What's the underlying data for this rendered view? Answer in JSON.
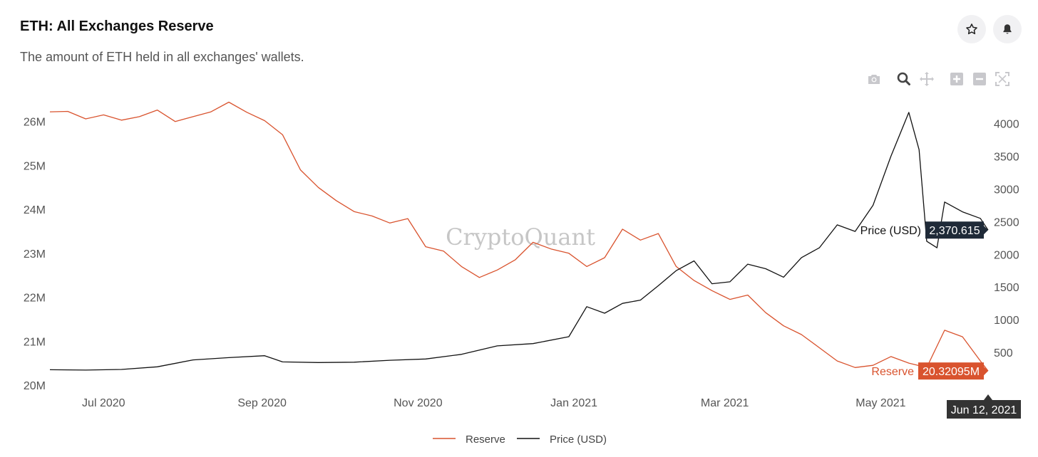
{
  "header": {
    "title": "ETH: All Exchanges Reserve",
    "subtitle": "The amount of ETH held in all exchanges' wallets."
  },
  "actions": [
    {
      "name": "star-icon",
      "label": "favorite"
    },
    {
      "name": "bell-icon",
      "label": "alert"
    }
  ],
  "modebar": [
    "camera-icon",
    "zoom-icon",
    "pan-icon",
    "zoom-in-icon",
    "zoom-out-icon",
    "autoscale-icon"
  ],
  "watermark": "CryptoQuant",
  "colors": {
    "reserve": "#d9532e",
    "price": "#111111",
    "tooltip_price_bg": "#1f2a38",
    "tooltip_date_bg": "#333333",
    "grid": "none"
  },
  "chart_data": {
    "type": "line",
    "title": "ETH: All Exchanges Reserve",
    "x_axis": {
      "type": "date",
      "ticks": [
        "Jul 2020",
        "Sep 2020",
        "Nov 2020",
        "Jan 2021",
        "Mar 2021",
        "May 2021"
      ],
      "range": [
        "2020-06-10",
        "2021-06-12"
      ]
    },
    "y_left": {
      "ticks": [
        "20M",
        "21M",
        "22M",
        "23M",
        "24M",
        "25M",
        "26M"
      ],
      "range": [
        20000000,
        26400000
      ]
    },
    "y_right": {
      "ticks": [
        "500",
        "1000",
        "1500",
        "2000",
        "2500",
        "3000",
        "3500",
        "4000"
      ],
      "range": [
        0,
        4300
      ]
    },
    "legend_position": "bottom-center",
    "series": [
      {
        "name": "Reserve",
        "axis": "left",
        "points": [
          [
            "2020-06-10",
            26220000
          ],
          [
            "2020-06-17",
            26230000
          ],
          [
            "2020-06-24",
            26060000
          ],
          [
            "2020-07-01",
            26150000
          ],
          [
            "2020-07-08",
            26030000
          ],
          [
            "2020-07-15",
            26110000
          ],
          [
            "2020-07-22",
            26260000
          ],
          [
            "2020-07-29",
            26000000
          ],
          [
            "2020-08-05",
            26110000
          ],
          [
            "2020-08-12",
            26220000
          ],
          [
            "2020-08-19",
            26440000
          ],
          [
            "2020-08-26",
            26210000
          ],
          [
            "2020-09-02",
            26020000
          ],
          [
            "2020-09-09",
            25700000
          ],
          [
            "2020-09-16",
            24900000
          ],
          [
            "2020-09-23",
            24500000
          ],
          [
            "2020-09-30",
            24200000
          ],
          [
            "2020-10-07",
            23950000
          ],
          [
            "2020-10-14",
            23850000
          ],
          [
            "2020-10-21",
            23690000
          ],
          [
            "2020-10-28",
            23790000
          ],
          [
            "2020-11-04",
            23150000
          ],
          [
            "2020-11-11",
            23050000
          ],
          [
            "2020-11-18",
            22700000
          ],
          [
            "2020-11-25",
            22450000
          ],
          [
            "2020-12-02",
            22620000
          ],
          [
            "2020-12-09",
            22850000
          ],
          [
            "2020-12-16",
            23250000
          ],
          [
            "2020-12-23",
            23100000
          ],
          [
            "2020-12-30",
            23000000
          ],
          [
            "2021-01-06",
            22700000
          ],
          [
            "2021-01-13",
            22900000
          ],
          [
            "2021-01-20",
            23550000
          ],
          [
            "2021-01-27",
            23300000
          ],
          [
            "2021-02-03",
            23450000
          ],
          [
            "2021-02-10",
            22700000
          ],
          [
            "2021-02-17",
            22380000
          ],
          [
            "2021-02-24",
            22150000
          ],
          [
            "2021-03-03",
            21950000
          ],
          [
            "2021-03-10",
            22050000
          ],
          [
            "2021-03-17",
            21650000
          ],
          [
            "2021-03-24",
            21350000
          ],
          [
            "2021-03-31",
            21150000
          ],
          [
            "2021-04-07",
            20850000
          ],
          [
            "2021-04-14",
            20550000
          ],
          [
            "2021-04-21",
            20400000
          ],
          [
            "2021-04-28",
            20450000
          ],
          [
            "2021-05-05",
            20650000
          ],
          [
            "2021-05-12",
            20500000
          ],
          [
            "2021-05-19",
            20400000
          ],
          [
            "2021-05-26",
            21250000
          ],
          [
            "2021-06-02",
            21100000
          ],
          [
            "2021-06-09",
            20550000
          ],
          [
            "2021-06-12",
            20320950
          ]
        ]
      },
      {
        "name": "Price (USD)",
        "axis": "right",
        "points": [
          [
            "2020-06-10",
            235
          ],
          [
            "2020-06-24",
            230
          ],
          [
            "2020-07-08",
            240
          ],
          [
            "2020-07-22",
            280
          ],
          [
            "2020-08-05",
            385
          ],
          [
            "2020-08-19",
            420
          ],
          [
            "2020-09-02",
            450
          ],
          [
            "2020-09-09",
            355
          ],
          [
            "2020-09-23",
            345
          ],
          [
            "2020-10-07",
            350
          ],
          [
            "2020-10-21",
            380
          ],
          [
            "2020-11-04",
            400
          ],
          [
            "2020-11-18",
            470
          ],
          [
            "2020-12-02",
            600
          ],
          [
            "2020-12-16",
            635
          ],
          [
            "2020-12-30",
            740
          ],
          [
            "2021-01-06",
            1200
          ],
          [
            "2021-01-13",
            1100
          ],
          [
            "2021-01-20",
            1250
          ],
          [
            "2021-01-27",
            1300
          ],
          [
            "2021-02-03",
            1520
          ],
          [
            "2021-02-10",
            1750
          ],
          [
            "2021-02-17",
            1900
          ],
          [
            "2021-02-24",
            1550
          ],
          [
            "2021-03-03",
            1580
          ],
          [
            "2021-03-10",
            1850
          ],
          [
            "2021-03-17",
            1780
          ],
          [
            "2021-03-24",
            1650
          ],
          [
            "2021-03-31",
            1950
          ],
          [
            "2021-04-07",
            2100
          ],
          [
            "2021-04-14",
            2450
          ],
          [
            "2021-04-21",
            2350
          ],
          [
            "2021-04-28",
            2750
          ],
          [
            "2021-05-05",
            3500
          ],
          [
            "2021-05-12",
            4170
          ],
          [
            "2021-05-16",
            3600
          ],
          [
            "2021-05-19",
            2200
          ],
          [
            "2021-05-23",
            2100
          ],
          [
            "2021-05-26",
            2800
          ],
          [
            "2021-06-02",
            2650
          ],
          [
            "2021-06-09",
            2550
          ],
          [
            "2021-06-12",
            2370.615
          ]
        ]
      }
    ],
    "hover": {
      "date": "Jun 12, 2021",
      "reserve_label": "Reserve",
      "reserve_value": "20.32095M",
      "price_label": "Price (USD)",
      "price_value": "2,370.615"
    }
  }
}
